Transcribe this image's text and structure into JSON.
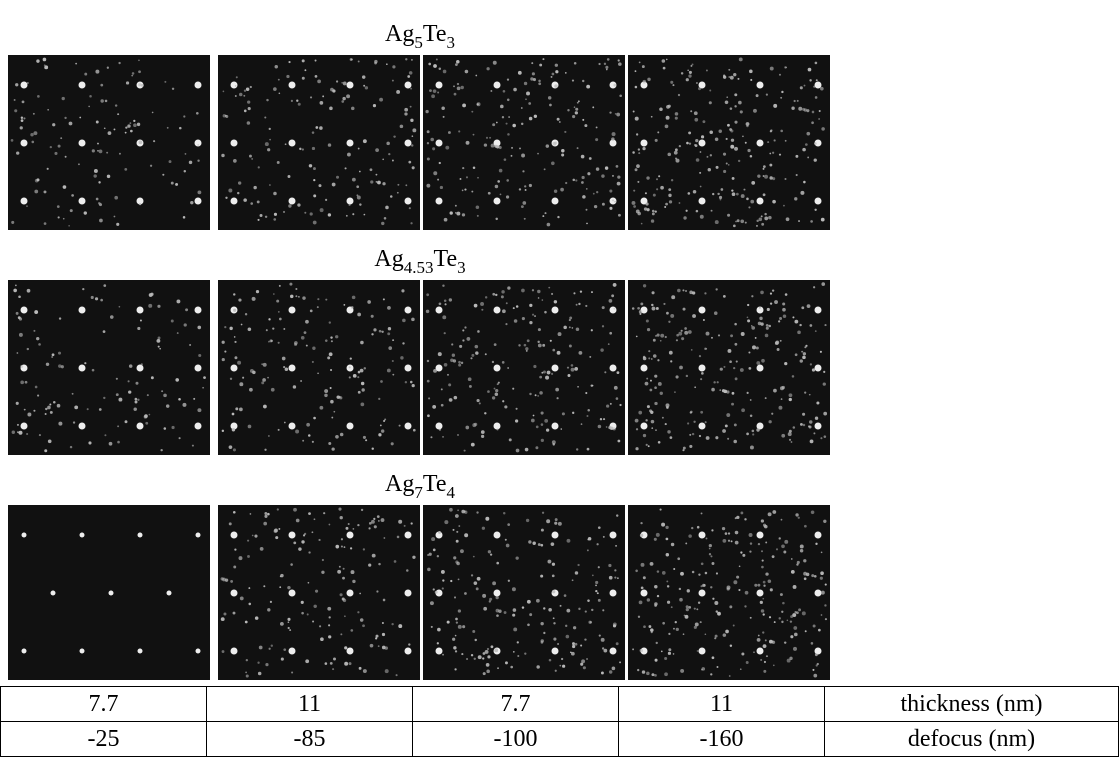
{
  "figure": {
    "groups": [
      {
        "label": [
          "Ag",
          "5",
          "Te",
          "3"
        ]
      },
      {
        "label": [
          "Ag",
          "4.53",
          "Te",
          "3"
        ]
      },
      {
        "label": [
          "Ag",
          "7",
          "Te",
          "4"
        ]
      }
    ]
  },
  "table": {
    "rows": [
      [
        "7.7",
        "11",
        "7.7",
        "11",
        "thickness (nm)"
      ],
      [
        "-25",
        "-85",
        "-100",
        "-160",
        "defocus (nm)"
      ]
    ]
  }
}
